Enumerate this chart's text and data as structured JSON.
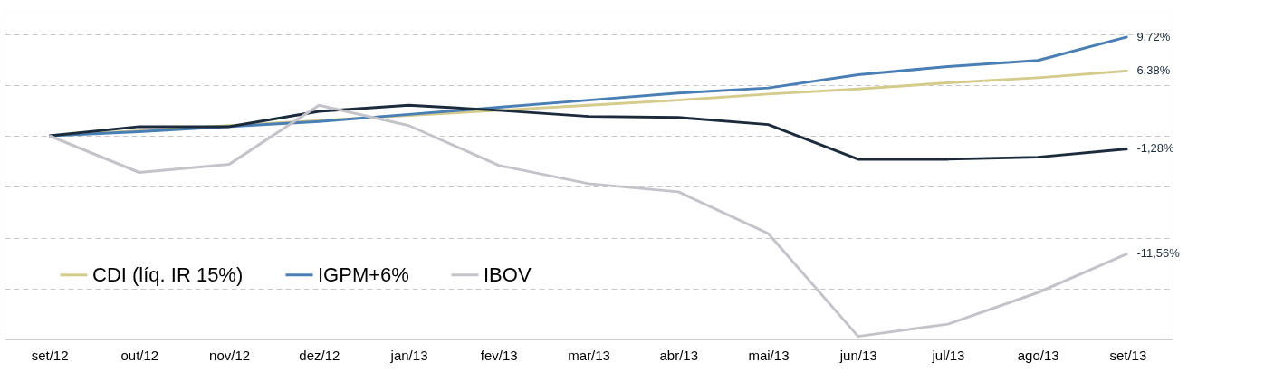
{
  "chart_data": {
    "type": "line",
    "categories": [
      "set/12",
      "out/12",
      "nov/12",
      "dez/12",
      "jan/13",
      "fev/13",
      "mar/13",
      "abr/13",
      "mai/13",
      "jun/13",
      "jul/13",
      "ago/13",
      "set/13"
    ],
    "series": [
      {
        "name": "CDI (líq. IR 15%)",
        "color": "#d4cb8c",
        "values": [
          0,
          0.5,
          1.0,
          1.5,
          2.0,
          2.5,
          3.0,
          3.5,
          4.1,
          4.6,
          5.2,
          5.7,
          6.38
        ],
        "value_labels": [
          null,
          null,
          null,
          null,
          null,
          null,
          null,
          null,
          null,
          null,
          null,
          null,
          "6,38%"
        ]
      },
      {
        "name": "IGPM+6%",
        "color": "#4a7fb5",
        "values": [
          0,
          0.4,
          0.9,
          1.4,
          2.1,
          2.8,
          3.5,
          4.2,
          4.7,
          6.0,
          6.8,
          7.4,
          9.72
        ],
        "value_labels": [
          null,
          null,
          null,
          null,
          null,
          null,
          null,
          null,
          null,
          null,
          null,
          null,
          "9,72%"
        ]
      },
      {
        "color": "#1c2b3c",
        "values": [
          0,
          0.9,
          0.9,
          2.4,
          3.0,
          2.5,
          1.9,
          1.8,
          1.1,
          -2.3,
          -2.3,
          -2.1,
          -1.28
        ],
        "value_labels": [
          null,
          null,
          null,
          null,
          null,
          null,
          null,
          null,
          null,
          null,
          null,
          null,
          "-1,28%"
        ]
      },
      {
        "name": "IBOV",
        "color": "#c4c3ca",
        "values": [
          0,
          -3.6,
          -2.8,
          3.0,
          1.0,
          -2.9,
          -4.7,
          -5.5,
          -9.6,
          -19.7,
          -18.5,
          -15.4,
          -11.56
        ],
        "value_labels": [
          null,
          null,
          null,
          null,
          null,
          null,
          null,
          null,
          null,
          null,
          null,
          null,
          "-11,56%"
        ]
      }
    ],
    "ylim": [
      -20,
      12
    ],
    "yticks": [
      {
        "value": -20,
        "label": null
      },
      {
        "value": -15,
        "label": null
      },
      {
        "value": -10,
        "label": null
      },
      {
        "value": -5,
        "label": null
      },
      {
        "value": 0,
        "label": null
      },
      {
        "value": 5,
        "label": null
      },
      {
        "value": 10,
        "label": null
      }
    ],
    "tick_labels": "x",
    "grid": "y",
    "legend": "bottom left",
    "marker": "none",
    "line_style": "solid"
  }
}
